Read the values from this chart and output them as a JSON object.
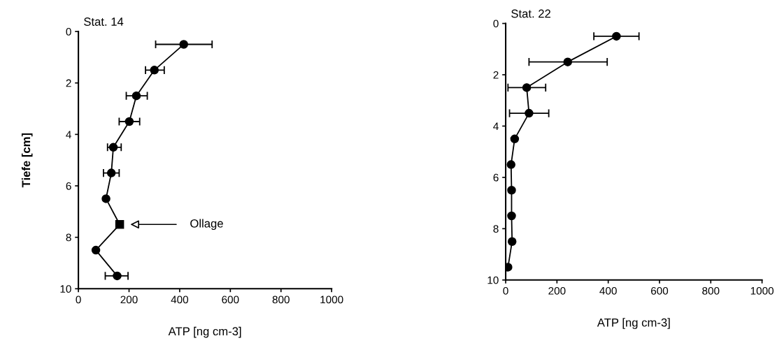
{
  "chart_data": [
    {
      "type": "line",
      "title": "Stat. 14",
      "xlabel": "ATP [ng cm-3]",
      "ylabel": "Tiefe [cm]",
      "xlim": [
        0,
        1000
      ],
      "xticks": [
        0,
        200,
        400,
        600,
        800,
        1000
      ],
      "ylim": [
        10,
        0
      ],
      "yticks": [
        0,
        2,
        4,
        6,
        8,
        10
      ],
      "grid": false,
      "legend": false,
      "series": [
        {
          "type": "line",
          "color": "#000000",
          "marker": "none",
          "x": [
            416,
            300,
            229,
            201,
            138,
            130,
            109,
            163,
            69,
            153
          ],
          "values": [
            0.5,
            1.5,
            2.5,
            3.5,
            4.5,
            5.5,
            6.5,
            7.5,
            8.5,
            9.5
          ]
        },
        {
          "type": "scatter",
          "color": "#000000",
          "marker": "circle",
          "x": [
            416,
            300,
            229,
            201,
            138,
            130,
            109,
            69,
            153
          ],
          "values": [
            0.5,
            1.5,
            2.5,
            3.5,
            4.5,
            5.5,
            6.5,
            8.5,
            9.5
          ],
          "xerrors": [
            [
              305,
              528
            ],
            [
              265,
              339
            ],
            [
              189,
              272
            ],
            [
              161,
              242
            ],
            [
              115,
              169
            ],
            [
              99,
              161
            ],
            null,
            null,
            [
              106,
              196
            ]
          ]
        },
        {
          "type": "scatter",
          "color": "#000000",
          "marker": "square",
          "x": [
            163
          ],
          "values": [
            7.5
          ]
        }
      ],
      "annotations": [
        "Ollage"
      ]
    },
    {
      "type": "line",
      "title": "Stat. 22",
      "xlabel": "ATP [ng cm-3]",
      "xlim": [
        0,
        1000
      ],
      "xticks": [
        0,
        200,
        400,
        600,
        800,
        1000
      ],
      "ylim": [
        10,
        0
      ],
      "yticks": [
        0,
        2,
        4,
        6,
        8,
        10
      ],
      "grid": false,
      "legend": false,
      "series": [
        {
          "type": "line",
          "color": "#000000",
          "marker": "circle",
          "x": [
            432,
            242,
            82,
            91,
            35,
            21,
            23,
            23,
            25,
            9
          ],
          "values": [
            0.5,
            1.5,
            2.5,
            3.5,
            4.5,
            5.5,
            6.5,
            7.5,
            8.5,
            9.5
          ],
          "xerrors": [
            [
              344,
              520
            ],
            [
              91,
              396
            ],
            [
              9,
              156
            ],
            [
              15,
              168
            ],
            null,
            null,
            null,
            null,
            null,
            null
          ]
        }
      ]
    }
  ]
}
